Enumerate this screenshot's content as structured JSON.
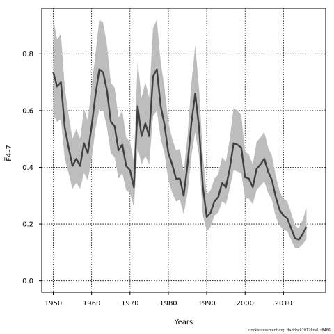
{
  "chart_data": {
    "type": "line",
    "title": "",
    "xlabel": "Years",
    "ylabel": "F̅4–7",
    "xlim": [
      1947,
      2021
    ],
    "ylim": [
      -0.04,
      0.96
    ],
    "x_ticks": [
      1950,
      1960,
      1970,
      1980,
      1990,
      2000,
      2010
    ],
    "y_ticks": [
      0.0,
      0.2,
      0.4,
      0.6,
      0.8
    ],
    "x_tick_labels": [
      "1950",
      "1960",
      "1970",
      "1980",
      "1990",
      "2000",
      "2010"
    ],
    "y_tick_labels": [
      "0.0",
      "0.2",
      "0.4",
      "0.6",
      "0.8"
    ],
    "grid": true,
    "colors": {
      "line": "#404040",
      "band": "#bdbdbd",
      "grid": "#000000"
    },
    "x": [
      1950,
      1951,
      1952,
      1953,
      1954,
      1955,
      1956,
      1957,
      1958,
      1959,
      1960,
      1961,
      1962,
      1963,
      1964,
      1965,
      1966,
      1967,
      1968,
      1969,
      1970,
      1971,
      1972,
      1973,
      1974,
      1975,
      1976,
      1977,
      1978,
      1979,
      1980,
      1981,
      1982,
      1983,
      1984,
      1985,
      1986,
      1987,
      1988,
      1989,
      1990,
      1991,
      1992,
      1993,
      1994,
      1995,
      1996,
      1997,
      1998,
      1999,
      2000,
      2001,
      2002,
      2003,
      2004,
      2005,
      2006,
      2007,
      2008,
      2009,
      2010,
      2011,
      2012,
      2013,
      2014,
      2015,
      2016
    ],
    "series": [
      {
        "values": [
          0.735,
          0.685,
          0.7,
          0.54,
          0.47,
          0.405,
          0.43,
          0.405,
          0.485,
          0.45,
          0.545,
          0.655,
          0.745,
          0.735,
          0.67,
          0.56,
          0.545,
          0.46,
          0.48,
          0.405,
          0.39,
          0.33,
          0.615,
          0.51,
          0.555,
          0.51,
          0.72,
          0.745,
          0.615,
          0.55,
          0.45,
          0.41,
          0.36,
          0.36,
          0.3,
          0.41,
          0.555,
          0.66,
          0.54,
          0.33,
          0.225,
          0.24,
          0.28,
          0.295,
          0.345,
          0.33,
          0.395,
          0.485,
          0.48,
          0.47,
          0.365,
          0.36,
          0.33,
          0.395,
          0.41,
          0.43,
          0.385,
          0.355,
          0.295,
          0.25,
          0.23,
          0.22,
          0.185,
          0.15,
          0.145,
          0.165,
          0.19
        ],
        "lower": [
          0.585,
          0.56,
          0.57,
          0.43,
          0.38,
          0.325,
          0.345,
          0.325,
          0.38,
          0.355,
          0.43,
          0.535,
          0.605,
          0.6,
          0.54,
          0.45,
          0.435,
          0.36,
          0.38,
          0.32,
          0.31,
          0.26,
          0.47,
          0.41,
          0.44,
          0.41,
          0.58,
          0.6,
          0.5,
          0.45,
          0.355,
          0.31,
          0.28,
          0.285,
          0.235,
          0.31,
          0.44,
          0.525,
          0.44,
          0.23,
          0.175,
          0.19,
          0.23,
          0.24,
          0.28,
          0.27,
          0.325,
          0.39,
          0.385,
          0.38,
          0.29,
          0.29,
          0.27,
          0.32,
          0.335,
          0.35,
          0.31,
          0.285,
          0.225,
          0.195,
          0.18,
          0.175,
          0.145,
          0.115,
          0.115,
          0.13,
          0.145
        ],
        "upper": [
          0.925,
          0.85,
          0.87,
          0.68,
          0.585,
          0.5,
          0.535,
          0.5,
          0.605,
          0.565,
          0.685,
          0.8,
          0.92,
          0.91,
          0.83,
          0.7,
          0.68,
          0.575,
          0.6,
          0.505,
          0.49,
          0.42,
          0.775,
          0.645,
          0.7,
          0.645,
          0.89,
          0.92,
          0.77,
          0.68,
          0.56,
          0.5,
          0.46,
          0.465,
          0.385,
          0.51,
          0.695,
          0.83,
          0.68,
          0.44,
          0.305,
          0.32,
          0.36,
          0.375,
          0.435,
          0.42,
          0.5,
          0.61,
          0.6,
          0.585,
          0.455,
          0.445,
          0.41,
          0.49,
          0.505,
          0.525,
          0.47,
          0.44,
          0.37,
          0.315,
          0.29,
          0.28,
          0.24,
          0.195,
          0.185,
          0.215,
          0.255
        ]
      }
    ]
  },
  "watermark": "stockassessment.org, Haddock2017final, r8466"
}
